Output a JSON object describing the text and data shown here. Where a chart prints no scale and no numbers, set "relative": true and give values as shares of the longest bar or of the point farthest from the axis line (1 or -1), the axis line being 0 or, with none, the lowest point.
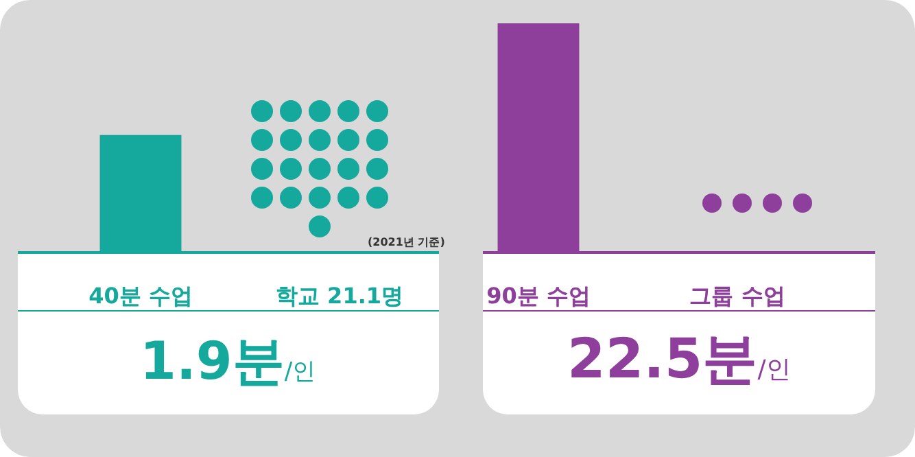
{
  "chart_data": {
    "type": "bar",
    "relative": true,
    "categories": [
      "40분 수업",
      "학교 21.1명",
      "90분 수업",
      "그룹 수업"
    ],
    "series": [
      {
        "values": [
          0.51,
          null,
          1,
          null
        ],
        "colors": [
          "#14a99c",
          "#14a99c",
          "#8e3f9b",
          "#8e3f9b"
        ]
      }
    ],
    "annotations": [
      "(2021년 기준)",
      "1.9분/인",
      "22.5분/인"
    ],
    "grid": false,
    "legend": false
  }
}
